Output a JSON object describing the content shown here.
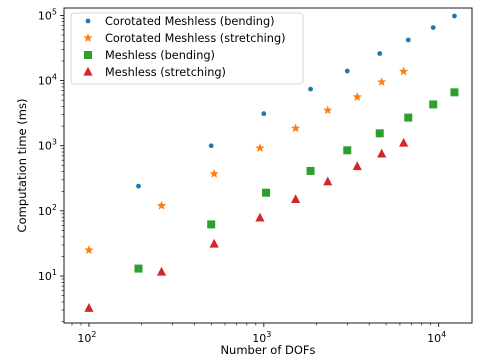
{
  "chart_data": {
    "type": "scatter",
    "title": "",
    "xlabel": "Number of DOFs",
    "ylabel": "Computation time (ms)",
    "x_scale": "log",
    "y_scale": "log",
    "xlim": [
      72,
      15500
    ],
    "ylim": [
      1.9,
      130000
    ],
    "grid": false,
    "legend_position": "top-left",
    "x_ticks": [
      {
        "value": 100,
        "label": "10^2",
        "base": "10",
        "exp": "2"
      },
      {
        "value": 1000,
        "label": "10^3",
        "base": "10",
        "exp": "3"
      },
      {
        "value": 10000,
        "label": "10^4",
        "base": "10",
        "exp": "4"
      }
    ],
    "y_ticks": [
      {
        "value": 10,
        "label": "10^1",
        "base": "10",
        "exp": "1"
      },
      {
        "value": 100,
        "label": "10^2",
        "base": "10",
        "exp": "2"
      },
      {
        "value": 1000,
        "label": "10^3",
        "base": "10",
        "exp": "3"
      },
      {
        "value": 10000,
        "label": "10^4",
        "base": "10",
        "exp": "4"
      },
      {
        "value": 100000,
        "label": "10^5",
        "base": "10",
        "exp": "5"
      }
    ],
    "series": [
      {
        "name": "Corotated Meshless (bending)",
        "marker": "circle",
        "color": "#1f77b4",
        "points": [
          [
            192,
            240
          ],
          [
            500,
            1000
          ],
          [
            1000,
            3100
          ],
          [
            1850,
            7400
          ],
          [
            3000,
            14000
          ],
          [
            4600,
            26000
          ],
          [
            6700,
            42000
          ],
          [
            9300,
            65000
          ],
          [
            12300,
            98000
          ]
        ]
      },
      {
        "name": "Corotated Meshless (stretching)",
        "marker": "star",
        "color": "#ff7f0e",
        "points": [
          [
            100,
            25
          ],
          [
            260,
            120
          ],
          [
            520,
            370
          ],
          [
            950,
            920
          ],
          [
            1520,
            1850
          ],
          [
            2320,
            3500
          ],
          [
            3420,
            5600
          ],
          [
            4720,
            9500
          ],
          [
            6300,
            13800
          ]
        ]
      },
      {
        "name": "Meshless (bending)",
        "marker": "square",
        "color": "#2ca02c",
        "points": [
          [
            192,
            13
          ],
          [
            500,
            62
          ],
          [
            1030,
            190
          ],
          [
            1850,
            410
          ],
          [
            3000,
            850
          ],
          [
            4600,
            1550
          ],
          [
            6700,
            2700
          ],
          [
            9300,
            4300
          ],
          [
            12300,
            6600
          ]
        ]
      },
      {
        "name": "Meshless (stretching)",
        "marker": "triangle",
        "color": "#d62728",
        "points": [
          [
            100,
            3.2
          ],
          [
            260,
            11.5
          ],
          [
            520,
            31
          ],
          [
            950,
            78
          ],
          [
            1520,
            150
          ],
          [
            2320,
            280
          ],
          [
            3420,
            480
          ],
          [
            4720,
            750
          ],
          [
            6300,
            1100
          ]
        ]
      }
    ]
  }
}
